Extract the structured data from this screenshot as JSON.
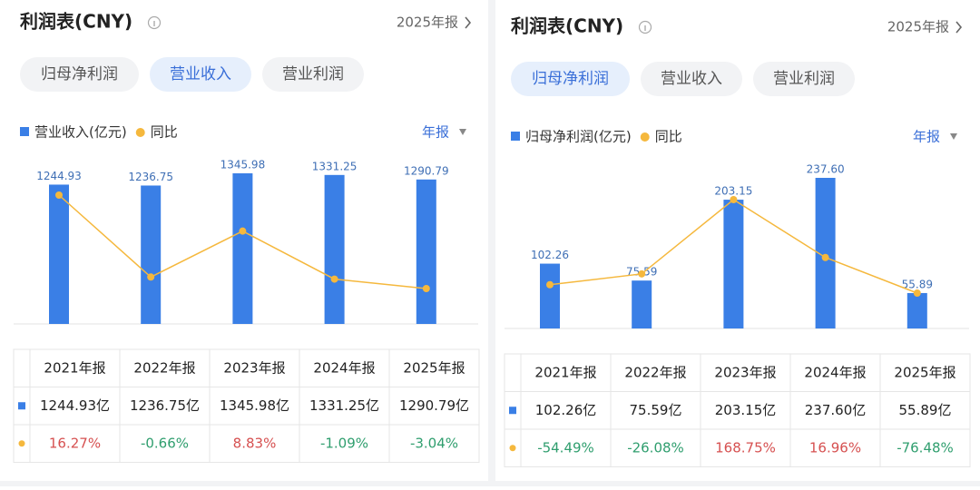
{
  "panels": [
    {
      "title": "利润表(CNY)",
      "period": "2025年报",
      "tabs": [
        "归母净利润",
        "营业收入",
        "营业利润"
      ],
      "active_tab": 1,
      "filter": "年报",
      "chart_data": {
        "type": "bar",
        "series": [
          {
            "name": "营业收入(亿元)",
            "color": "#3a7fe6",
            "values": [
              1244.93,
              1236.75,
              1345.98,
              1331.25,
              1290.79
            ]
          },
          {
            "name": "同比",
            "type": "line",
            "color": "#f5b83d",
            "values": [
              16.27,
              -0.66,
              8.83,
              -1.09,
              -3.04
            ]
          }
        ]
      },
      "table": {
        "header": [
          "2021年报",
          "2022年报",
          "2023年报",
          "2024年报",
          "2025年报"
        ],
        "rows": [
          [
            "1244.93亿",
            "1236.75亿",
            "1345.98亿",
            "1331.25亿",
            "1290.79亿"
          ],
          [
            "16.27%",
            "-0.66%",
            "8.83%",
            "-1.09%",
            "-3.04%"
          ]
        ]
      },
      "colors": {
        "positive": "#d65050",
        "negative": "#2f9e6e"
      }
    },
    {
      "title": "利润表(CNY)",
      "period": "2025年报",
      "tabs": [
        "归母净利润",
        "营业收入",
        "营业利润"
      ],
      "active_tab": 0,
      "filter": "年报",
      "chart_data": {
        "type": "bar",
        "series": [
          {
            "name": "归母净利润(亿元)",
            "color": "#3a7fe6",
            "values": [
              102.26,
              75.59,
              203.15,
              237.6,
              55.89
            ],
            "value_labels": [
              "102.26",
              "75.59",
              "203.15",
              "237.60",
              "55.89"
            ]
          },
          {
            "name": "同比",
            "type": "line",
            "color": "#f5b83d",
            "values": [
              -54.49,
              -26.08,
              168.75,
              16.96,
              -76.48
            ]
          }
        ]
      },
      "table": {
        "header": [
          "2021年报",
          "2022年报",
          "2023年报",
          "2024年报",
          "2025年报"
        ],
        "rows": [
          [
            "102.26亿",
            "75.59亿",
            "203.15亿",
            "237.60亿",
            "55.89亿"
          ],
          [
            "-54.49%",
            "-26.08%",
            "168.75%",
            "16.96%",
            "-76.48%"
          ]
        ]
      },
      "colors": {
        "positive": "#d65050",
        "negative": "#2f9e6e"
      }
    }
  ]
}
